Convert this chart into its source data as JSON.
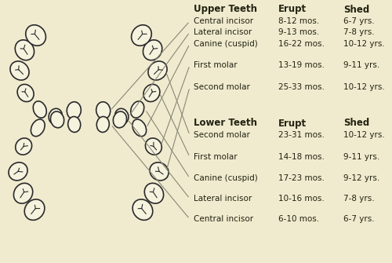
{
  "bg_color": "#f0ebcf",
  "tooth_fill": "#f5f2de",
  "tooth_edge": "#2a2a2a",
  "line_color": "#888877",
  "text_color": "#222211",
  "upper_teeth": {
    "col1_label": "Upper Teeth",
    "col2_label": "Erupt",
    "col3_label": "Shed",
    "rows": [
      {
        "label": "Central incisor",
        "erupt": "8-12 mos.",
        "shed": "6-7 yrs."
      },
      {
        "label": "Lateral incisor",
        "erupt": "9-13 mos.",
        "shed": "7-8 yrs."
      },
      {
        "label": "Canine (cuspid)",
        "erupt": "16-22 mos.",
        "shed": "10-12 yrs."
      },
      {
        "label": "First molar",
        "erupt": "13-19 mos.",
        "shed": "9-11 yrs."
      },
      {
        "label": "Second molar",
        "erupt": "25-33 mos.",
        "shed": "10-12 yrs."
      }
    ]
  },
  "lower_teeth": {
    "col1_label": "Lower Teeth",
    "col2_label": "Erupt",
    "col3_label": "Shed",
    "rows": [
      {
        "label": "Second molar",
        "erupt": "23-31 mos.",
        "shed": "10-12 yrs."
      },
      {
        "label": "First molar",
        "erupt": "14-18 mos.",
        "shed": "9-11 yrs."
      },
      {
        "label": "Canine (cuspid)",
        "erupt": "17-23 mos.",
        "shed": "9-12 yrs."
      },
      {
        "label": "Lateral incisor",
        "erupt": "10-16 mos.",
        "shed": "7-8 yrs."
      },
      {
        "label": "Central incisor",
        "erupt": "6-10 mos.",
        "shed": "6-7 yrs."
      }
    ]
  }
}
